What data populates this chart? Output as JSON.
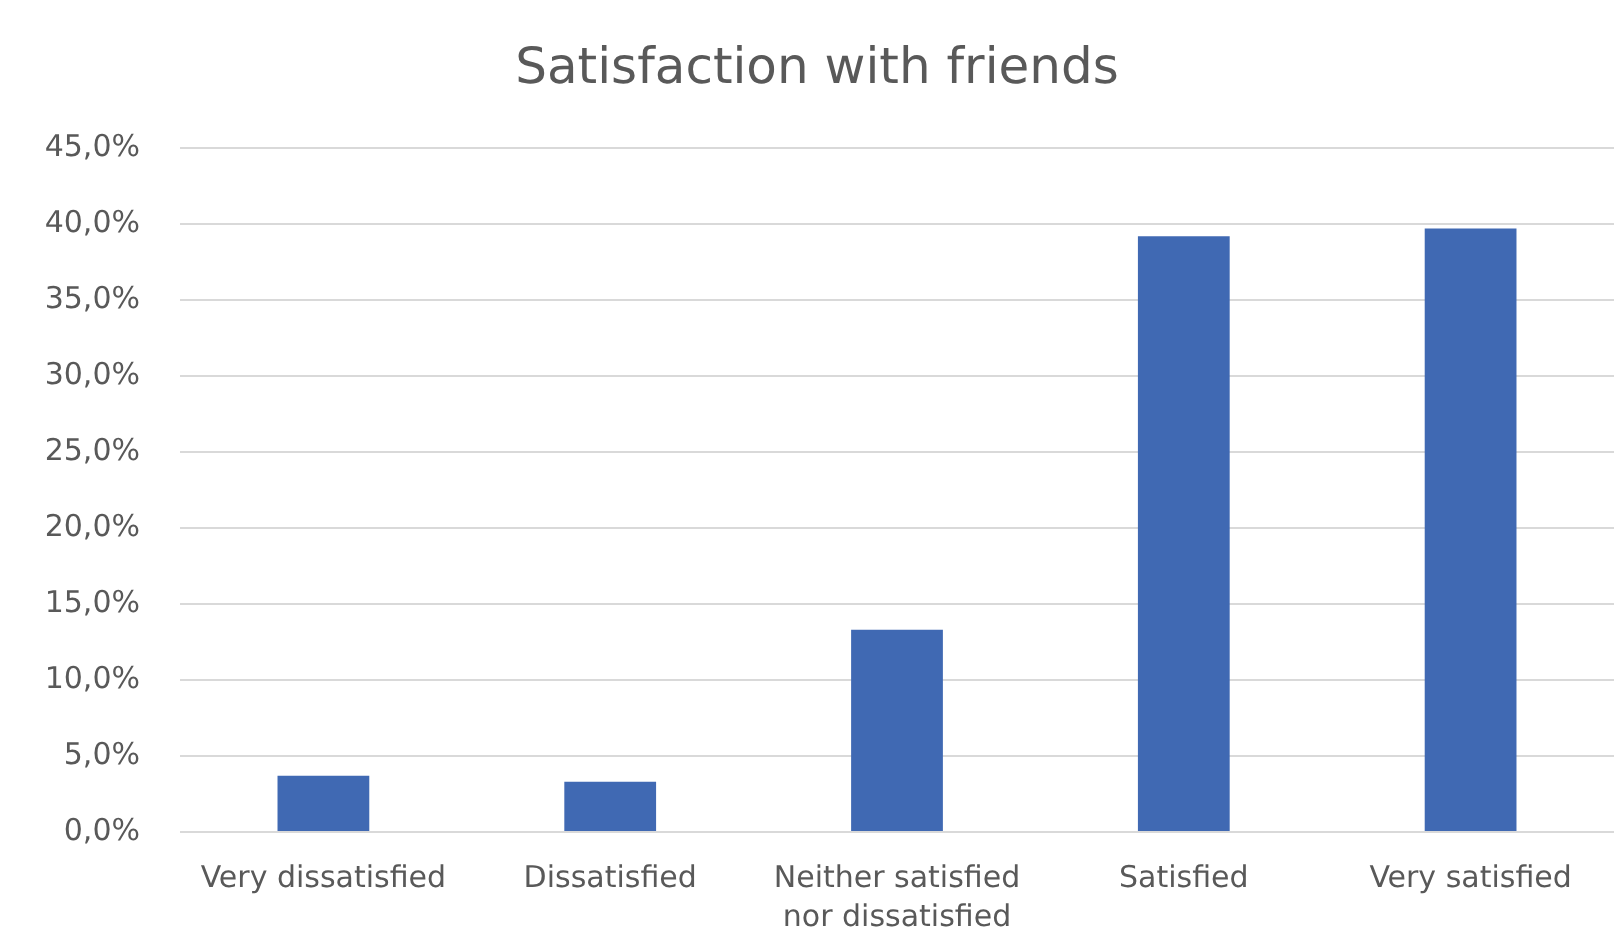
{
  "chart_data": {
    "type": "bar",
    "title": "Satisfaction with friends",
    "categories": [
      "Very dissatisfied",
      "Dissatisfied",
      "Neither satisfied nor dissatisfied",
      "Satisfied",
      "Very satisfied"
    ],
    "values": [
      3.7,
      3.3,
      13.3,
      39.2,
      39.7
    ],
    "color": "#4069b3",
    "ylim": [
      0,
      45
    ],
    "yticks": [
      {
        "value": 0,
        "label": "0,0%"
      },
      {
        "value": 5,
        "label": "5,0%"
      },
      {
        "value": 10,
        "label": "10,0%"
      },
      {
        "value": 15,
        "label": "15,0%"
      },
      {
        "value": 20,
        "label": "20,0%"
      },
      {
        "value": 25,
        "label": "25,0%"
      },
      {
        "value": 30,
        "label": "30,0%"
      },
      {
        "value": 35,
        "label": "35,0%"
      },
      {
        "value": 40,
        "label": "40,0%"
      },
      {
        "value": 45,
        "label": "45,0%"
      }
    ],
    "grid": "y"
  }
}
